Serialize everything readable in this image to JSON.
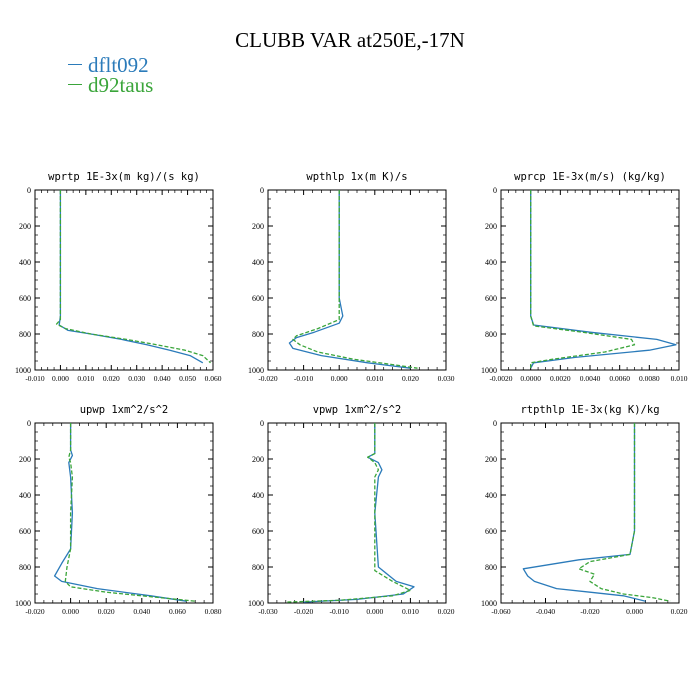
{
  "title": "CLUBB VAR at250E,-17N",
  "legend": [
    {
      "name": "dflt092",
      "color": "#2b7bba"
    },
    {
      "name": "d92taus",
      "color": "#3aa53a"
    }
  ],
  "chart_data": [
    {
      "type": "line",
      "title": "wprtp  1E-3x(m kg)/(s kg)",
      "xlim": [
        -0.01,
        0.06
      ],
      "xticks": [
        "-0.010",
        "0.000",
        "0.010",
        "0.020",
        "0.030",
        "0.040",
        "0.050",
        "0.060"
      ],
      "ylim": [
        1000,
        0
      ],
      "yticks": [
        "0",
        "200",
        "400",
        "600",
        "800",
        "1000"
      ],
      "series": [
        {
          "name": "dflt092",
          "x": [
            0,
            0,
            0,
            0,
            0,
            -0.0005,
            0.003,
            0.012,
            0.024,
            0.034,
            0.043,
            0.051,
            0.056
          ],
          "y": [
            0,
            200,
            400,
            600,
            700,
            750,
            780,
            800,
            830,
            860,
            890,
            920,
            960
          ]
        },
        {
          "name": "d92taus",
          "x": [
            0,
            0,
            0,
            0,
            0,
            -0.0015,
            0.002,
            0.012,
            0.026,
            0.038,
            0.049,
            0.056,
            0.059
          ],
          "y": [
            0,
            200,
            400,
            600,
            720,
            745,
            770,
            800,
            830,
            860,
            890,
            920,
            960
          ]
        }
      ]
    },
    {
      "type": "line",
      "title": "wpthlp  1x(m K)/s",
      "xlim": [
        -0.02,
        0.03
      ],
      "xticks": [
        "-0.020",
        "-0.010",
        "0.000",
        "0.010",
        "0.020",
        "0.030"
      ],
      "ylim": [
        1000,
        0
      ],
      "yticks": [
        "0",
        "200",
        "400",
        "600",
        "800",
        "1000"
      ],
      "series": [
        {
          "name": "dflt092",
          "x": [
            0,
            0,
            0,
            0,
            0.001,
            0,
            -0.007,
            -0.012,
            -0.014,
            -0.013,
            -0.005,
            0.008,
            0.02
          ],
          "y": [
            0,
            200,
            400,
            600,
            700,
            740,
            790,
            820,
            850,
            880,
            920,
            960,
            990
          ]
        },
        {
          "name": "d92taus",
          "x": [
            0,
            0,
            0,
            0,
            0,
            -0.006,
            -0.012,
            -0.013,
            -0.011,
            -0.006,
            0.004,
            0.015,
            0.022
          ],
          "y": [
            0,
            200,
            400,
            600,
            720,
            770,
            810,
            830,
            860,
            900,
            940,
            970,
            990
          ]
        }
      ]
    },
    {
      "type": "line",
      "title": "wprcp  1E-3x(m/s) (kg/kg)",
      "xlim": [
        -0.002,
        0.01
      ],
      "xticks": [
        "-0.0020",
        "0.0000",
        "0.0020",
        "0.0040",
        "0.0060",
        "0.0080",
        "0.010"
      ],
      "ylim": [
        1000,
        0
      ],
      "yticks": [
        "0",
        "200",
        "400",
        "600",
        "800",
        "1000"
      ],
      "series": [
        {
          "name": "dflt092",
          "x": [
            0,
            0,
            0,
            0,
            0,
            0.0002,
            0.004,
            0.0085,
            0.0098,
            0.008,
            0.003,
            0.0002,
            0
          ],
          "y": [
            0,
            200,
            400,
            600,
            700,
            750,
            790,
            830,
            860,
            890,
            930,
            960,
            990
          ]
        },
        {
          "name": "d92taus",
          "x": [
            0,
            0,
            0,
            0,
            0,
            0.0002,
            0.0035,
            0.0068,
            0.007,
            0.005,
            0.0015,
            0,
            0
          ],
          "y": [
            0,
            200,
            400,
            600,
            700,
            755,
            790,
            830,
            860,
            900,
            940,
            960,
            990
          ]
        }
      ]
    },
    {
      "type": "line",
      "title": "upwp  1xm^2/s^2",
      "xlim": [
        -0.02,
        0.08
      ],
      "xticks": [
        "-0.020",
        "0.000",
        "0.020",
        "0.040",
        "0.060",
        "0.080"
      ],
      "ylim": [
        1000,
        0
      ],
      "yticks": [
        "0",
        "200",
        "400",
        "600",
        "800",
        "1000"
      ],
      "series": [
        {
          "name": "dflt092",
          "x": [
            0,
            0,
            0.001,
            -0.001,
            0,
            0.001,
            0,
            -0.005,
            -0.009,
            -0.005,
            0.015,
            0.045,
            0.065
          ],
          "y": [
            0,
            150,
            180,
            220,
            300,
            500,
            700,
            780,
            850,
            880,
            920,
            960,
            990
          ]
        },
        {
          "name": "d92taus",
          "x": [
            0,
            0,
            -0.001,
            0,
            0.001,
            0,
            0,
            -0.002,
            -0.003,
            0,
            0.02,
            0.05,
            0.07
          ],
          "y": [
            0,
            150,
            190,
            220,
            300,
            500,
            700,
            800,
            880,
            910,
            940,
            970,
            990
          ]
        }
      ]
    },
    {
      "type": "line",
      "title": "vpwp  1xm^2/s^2",
      "xlim": [
        -0.03,
        0.02
      ],
      "xticks": [
        "-0.030",
        "-0.020",
        "-0.010",
        "0.000",
        "0.010",
        "0.020"
      ],
      "ylim": [
        1000,
        0
      ],
      "yticks": [
        "0",
        "200",
        "400",
        "600",
        "800",
        "1000"
      ],
      "series": [
        {
          "name": "dflt092",
          "x": [
            0,
            0,
            -0.002,
            0.001,
            0.002,
            0.001,
            0,
            0.001,
            0.006,
            0.011,
            0.008,
            -0.005,
            -0.02
          ],
          "y": [
            0,
            170,
            190,
            220,
            260,
            300,
            500,
            800,
            880,
            910,
            950,
            980,
            995
          ]
        },
        {
          "name": "d92taus",
          "x": [
            0,
            0,
            -0.002,
            0,
            0.001,
            0,
            0,
            0,
            0.005,
            0.01,
            0.005,
            -0.01,
            -0.025
          ],
          "y": [
            0,
            170,
            190,
            220,
            260,
            300,
            500,
            820,
            880,
            930,
            960,
            985,
            995
          ]
        }
      ]
    },
    {
      "type": "line",
      "title": "rtpthlp  1E-3x(kg K)/kg",
      "xlim": [
        -0.06,
        0.02
      ],
      "xticks": [
        "-0.060",
        "-0.040",
        "-0.020",
        "0.000",
        "0.020"
      ],
      "ylim": [
        1000,
        0
      ],
      "yticks": [
        "0",
        "200",
        "400",
        "600",
        "800",
        "1000"
      ],
      "series": [
        {
          "name": "dflt092",
          "x": [
            0,
            0,
            0,
            0,
            -0.002,
            -0.025,
            -0.05,
            -0.048,
            -0.045,
            -0.035,
            -0.02,
            -0.005,
            0.005
          ],
          "y": [
            0,
            200,
            400,
            600,
            730,
            760,
            810,
            850,
            880,
            920,
            940,
            960,
            990
          ]
        },
        {
          "name": "d92taus",
          "x": [
            0,
            0,
            0,
            0,
            -0.002,
            -0.02,
            -0.025,
            -0.018,
            -0.02,
            -0.015,
            -0.005,
            0.008,
            0.016
          ],
          "y": [
            0,
            200,
            400,
            600,
            730,
            770,
            810,
            840,
            880,
            920,
            950,
            970,
            990
          ]
        }
      ]
    }
  ]
}
